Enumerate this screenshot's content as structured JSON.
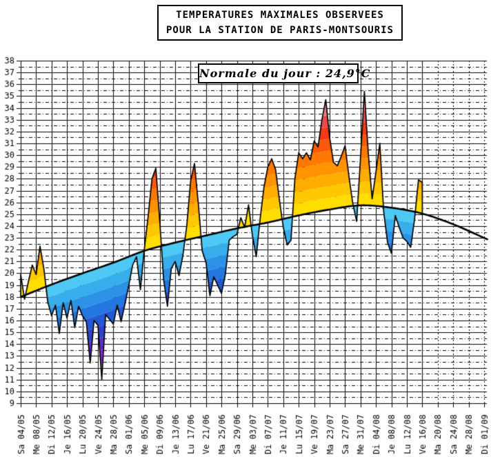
{
  "title_box": {
    "line1": "TEMPERATURES MAXIMALES OBSERVEES",
    "line2": "POUR LA STATION DE PARIS-MONTSOURIS"
  },
  "annotation_box": {
    "text": "Normale du jour : 24,9°C"
  },
  "chart_data": {
    "type": "area",
    "title": "TEMPERATURES MAXIMALES OBSERVEES POUR LA STATION DE PARIS-MONTSOURIS",
    "annotation": "Normale du jour : 24,9°C",
    "grid": "on",
    "y_axis": {
      "min": 9,
      "max": 38,
      "tick_step": 1,
      "unit": "°C",
      "labels": [
        9,
        10,
        11,
        12,
        13,
        14,
        15,
        16,
        17,
        18,
        19,
        20,
        21,
        22,
        23,
        24,
        25,
        26,
        27,
        28,
        29,
        30,
        31,
        32,
        33,
        34,
        35,
        36,
        37,
        38
      ]
    },
    "x_axis": {
      "tick_interval_days": 4,
      "solid_grid_last_index": 26,
      "tick_labels": [
        "Sa 04/05",
        "Me 08/05",
        "Di 12/05",
        "Je 16/05",
        "Lu 20/05",
        "Ve 24/05",
        "Ma 28/05",
        "Sa 01/06",
        "Me 05/06",
        "Di 09/06",
        "Je 13/06",
        "Lu 17/06",
        "Ve 21/06",
        "Ma 25/06",
        "Sa 29/06",
        "Me 03/07",
        "Di 07/07",
        "Je 11/07",
        "Lu 15/07",
        "Ve 19/07",
        "Ma 23/07",
        "Sa 27/07",
        "Me 31/07",
        "Di 04/08",
        "Je 08/08",
        "Lu 12/08",
        "Ve 16/08",
        "Ma 20/08",
        "Sa 24/08",
        "Me 28/08",
        "Di 01/09"
      ]
    },
    "normal": {
      "today_value": "24,9°C",
      "anchors": [
        [
          0,
          18.0
        ],
        [
          8,
          19.05
        ],
        [
          16,
          20.0
        ],
        [
          24,
          20.9
        ],
        [
          32,
          21.9
        ],
        [
          40,
          22.6
        ],
        [
          48,
          23.2
        ],
        [
          56,
          23.8
        ],
        [
          64,
          24.3
        ],
        [
          72,
          24.9
        ],
        [
          80,
          25.4
        ],
        [
          88,
          25.75
        ],
        [
          96,
          25.55
        ],
        [
          104,
          25.05
        ],
        [
          112,
          24.15
        ],
        [
          121,
          22.85
        ]
      ]
    },
    "observed": {
      "start_day": 0,
      "values": [
        19.9,
        17.8,
        19.3,
        20.7,
        19.9,
        22.3,
        20.4,
        17.6,
        16.4,
        17.3,
        14.9,
        17.5,
        16.2,
        17.7,
        15.4,
        17.2,
        16.4,
        15.9,
        12.4,
        16.0,
        15.6,
        11.0,
        16.5,
        16.1,
        15.7,
        17.3,
        15.9,
        17.4,
        19.0,
        20.7,
        21.4,
        18.6,
        22.0,
        24.8,
        28.0,
        28.9,
        24.5,
        19.5,
        17.2,
        20.4,
        21.0,
        19.8,
        21.5,
        24.0,
        27.8,
        29.3,
        25.9,
        21.9,
        20.9,
        18.1,
        19.7,
        19.0,
        18.3,
        19.9,
        22.8,
        23.1,
        23.3,
        24.7,
        23.9,
        25.8,
        23.2,
        21.4,
        24.6,
        27.3,
        29.0,
        29.7,
        28.8,
        26.2,
        23.9,
        22.4,
        22.8,
        28.0,
        30.2,
        29.7,
        30.2,
        29.6,
        31.2,
        30.7,
        33.0,
        34.7,
        31.5,
        29.4,
        29.1,
        29.9,
        30.8,
        28.2,
        25.9,
        24.4,
        29.8,
        35.4,
        30.2,
        26.3,
        28.6,
        31.0,
        25.2,
        22.6,
        21.7,
        24.9,
        23.9,
        23.0,
        22.7,
        22.2,
        24.6,
        27.9,
        27.7
      ]
    },
    "colors": {
      "background": "#FFFFFF",
      "grid": "#000000",
      "curve": "#000000",
      "outline": "#000000",
      "above_normal_bands": [
        "#FFDE00",
        "#FFC800",
        "#FFAD00",
        "#FF9300",
        "#FF7800",
        "#FA5A08",
        "#F23A16",
        "#EC4B4B",
        "#F28080",
        "#F7ABAB",
        "#FACACA"
      ],
      "below_normal_bands": [
        "#4EC8F4",
        "#38ADEC",
        "#2B92E6",
        "#2376DF",
        "#2359D6",
        "#2F42C7",
        "#5A2EC9",
        "#8429D6",
        "#AA30E1",
        "#CF3EEE",
        "#E061F4"
      ]
    }
  }
}
